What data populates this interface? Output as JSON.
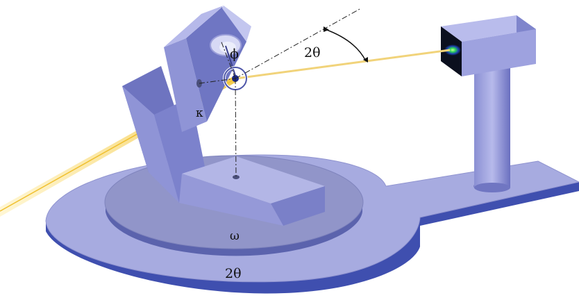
{
  "labels": {
    "phi": "ϕ",
    "kappa": "κ",
    "omega": "ω",
    "two_theta_angle": "2θ",
    "two_theta_base": "2θ"
  },
  "colors": {
    "platform_top": "#a7abe0",
    "platform_side": "#3f4faf",
    "disk_top": "#9195c9",
    "disk_side": "#5b63ad",
    "arm_front": "#8f94d6",
    "arm_side": "#6e74c0",
    "arm_top": "#b6b9ea",
    "beam": "#f3d26a",
    "detector_screen": "#0b0f1e"
  },
  "icons": {
    "detector": "area-detector",
    "goniometer": "four-circle-goniometer",
    "sample": "crystal-sample"
  }
}
